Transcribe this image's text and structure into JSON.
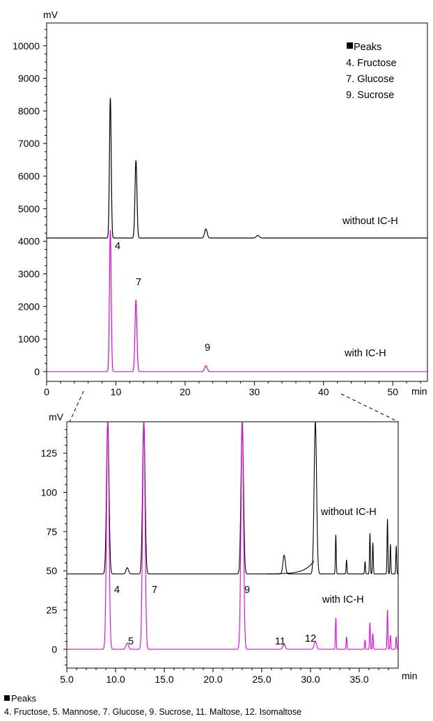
{
  "chart_data": [
    {
      "type": "line",
      "y_unit": "mV",
      "x_unit": "min",
      "xlim": [
        0,
        55
      ],
      "ylim": [
        -300,
        10700
      ],
      "yticks": [
        0,
        1000,
        2000,
        3000,
        4000,
        5000,
        6000,
        7000,
        8000,
        9000,
        10000
      ],
      "xticks": [
        0,
        10,
        20,
        30,
        40,
        50
      ],
      "legend": {
        "title": "Peaks",
        "items": [
          "4. Fructose",
          "7. Glucose",
          "9. Sucrose"
        ],
        "placement": "top-right"
      },
      "series": [
        {
          "name": "without IC-H",
          "color": "#000000",
          "baseline": 4100,
          "peaks": [
            {
              "x": 9.2,
              "y": 8400
            },
            {
              "x": 12.9,
              "y": 6480
            },
            {
              "x": 23.0,
              "y": 4380
            },
            {
              "x": 30.5,
              "y": 4180
            }
          ]
        },
        {
          "name": "with IC-H",
          "color": "#e600e6",
          "baseline": 0,
          "peaks": [
            {
              "x": 9.2,
              "y": 4350,
              "label": "4"
            },
            {
              "x": 12.9,
              "y": 2200,
              "label": "7"
            },
            {
              "x": 23.0,
              "y": 180,
              "label": "9"
            }
          ]
        }
      ]
    },
    {
      "type": "line",
      "y_unit": "mV",
      "x_unit": "min",
      "xlim": [
        5,
        39
      ],
      "ylim": [
        -12,
        145
      ],
      "yticks": [
        0,
        25,
        50,
        75,
        100,
        125
      ],
      "xtick_labels": [
        "5.0",
        "10.0",
        "15.0",
        "20.0",
        "25.0",
        "30.0",
        "35.0"
      ],
      "series": [
        {
          "name": "without IC-H",
          "color": "#000000",
          "baseline": 48,
          "peaks": [
            {
              "x": 9.2,
              "y": 145,
              "label": "4"
            },
            {
              "x": 11.2,
              "y": 52
            },
            {
              "x": 12.9,
              "y": 145,
              "label": "7"
            },
            {
              "x": 23.0,
              "y": 145,
              "label": "9"
            },
            {
              "x": 27.3,
              "y": 60
            },
            {
              "x": 30.5,
              "y": 145
            },
            {
              "x": 32.6,
              "y": 73
            },
            {
              "x": 33.7,
              "y": 57
            },
            {
              "x": 35.6,
              "y": 56
            },
            {
              "x": 36.1,
              "y": 74
            },
            {
              "x": 36.4,
              "y": 68
            },
            {
              "x": 37.9,
              "y": 83
            },
            {
              "x": 38.2,
              "y": 67
            },
            {
              "x": 38.8,
              "y": 66
            }
          ]
        },
        {
          "name": "with IC-H",
          "color": "#e600e6",
          "baseline": 0,
          "peaks": [
            {
              "x": 9.2,
              "y": 145
            },
            {
              "x": 11.2,
              "y": 4,
              "label": "5"
            },
            {
              "x": 12.9,
              "y": 145
            },
            {
              "x": 23.0,
              "y": 145
            },
            {
              "x": 27.3,
              "y": 3,
              "label": "11"
            },
            {
              "x": 30.5,
              "y": 5,
              "label": "12"
            },
            {
              "x": 32.6,
              "y": 20
            },
            {
              "x": 33.7,
              "y": 8
            },
            {
              "x": 35.6,
              "y": 6
            },
            {
              "x": 36.1,
              "y": 17
            },
            {
              "x": 36.4,
              "y": 10
            },
            {
              "x": 37.9,
              "y": 25
            },
            {
              "x": 38.2,
              "y": 9
            },
            {
              "x": 38.8,
              "y": 8
            }
          ]
        }
      ],
      "legend": {
        "title": "Peaks",
        "text": "4. Fructose, 5. Mannose, 7. Glucose, 9. Sucrose, 11. Maltose, 12. Isomaltose",
        "placement": "bottom"
      }
    }
  ]
}
